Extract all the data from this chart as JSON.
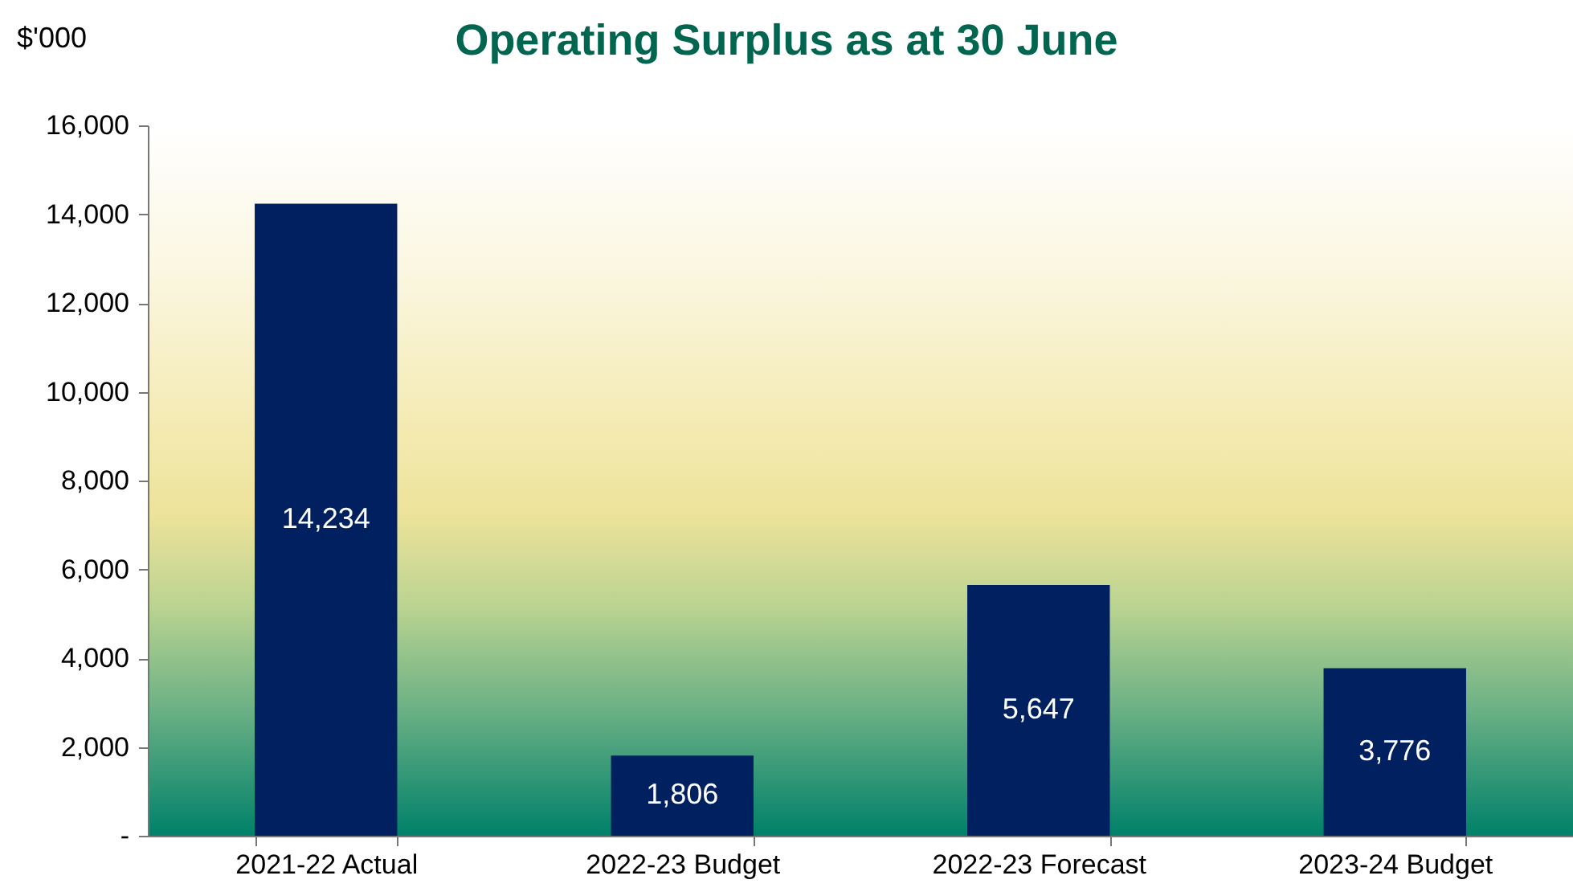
{
  "chart_data": {
    "type": "bar",
    "title": "Operating Surplus as at 30 June",
    "ylabel": "$'000",
    "categories": [
      "2021-22 Actual",
      "2022-23 Budget",
      "2022-23 Forecast",
      "2023-24 Budget"
    ],
    "values": [
      14234,
      1806,
      5647,
      3776
    ],
    "color": "#002060",
    "value_labels": [
      "14,234",
      "1,806",
      "5,647",
      "3,776"
    ],
    "ylim": [
      0,
      16000
    ],
    "yticks": [
      {
        "value": 0,
        "label": "-"
      },
      {
        "value": 2000,
        "label": "2,000"
      },
      {
        "value": 4000,
        "label": "4,000"
      },
      {
        "value": 6000,
        "label": "6,000"
      },
      {
        "value": 8000,
        "label": "8,000"
      },
      {
        "value": 10000,
        "label": "10,000"
      },
      {
        "value": 12000,
        "label": "12,000"
      },
      {
        "value": 14000,
        "label": "14,000"
      },
      {
        "value": 16000,
        "label": "16,000"
      }
    ],
    "grid": false
  }
}
